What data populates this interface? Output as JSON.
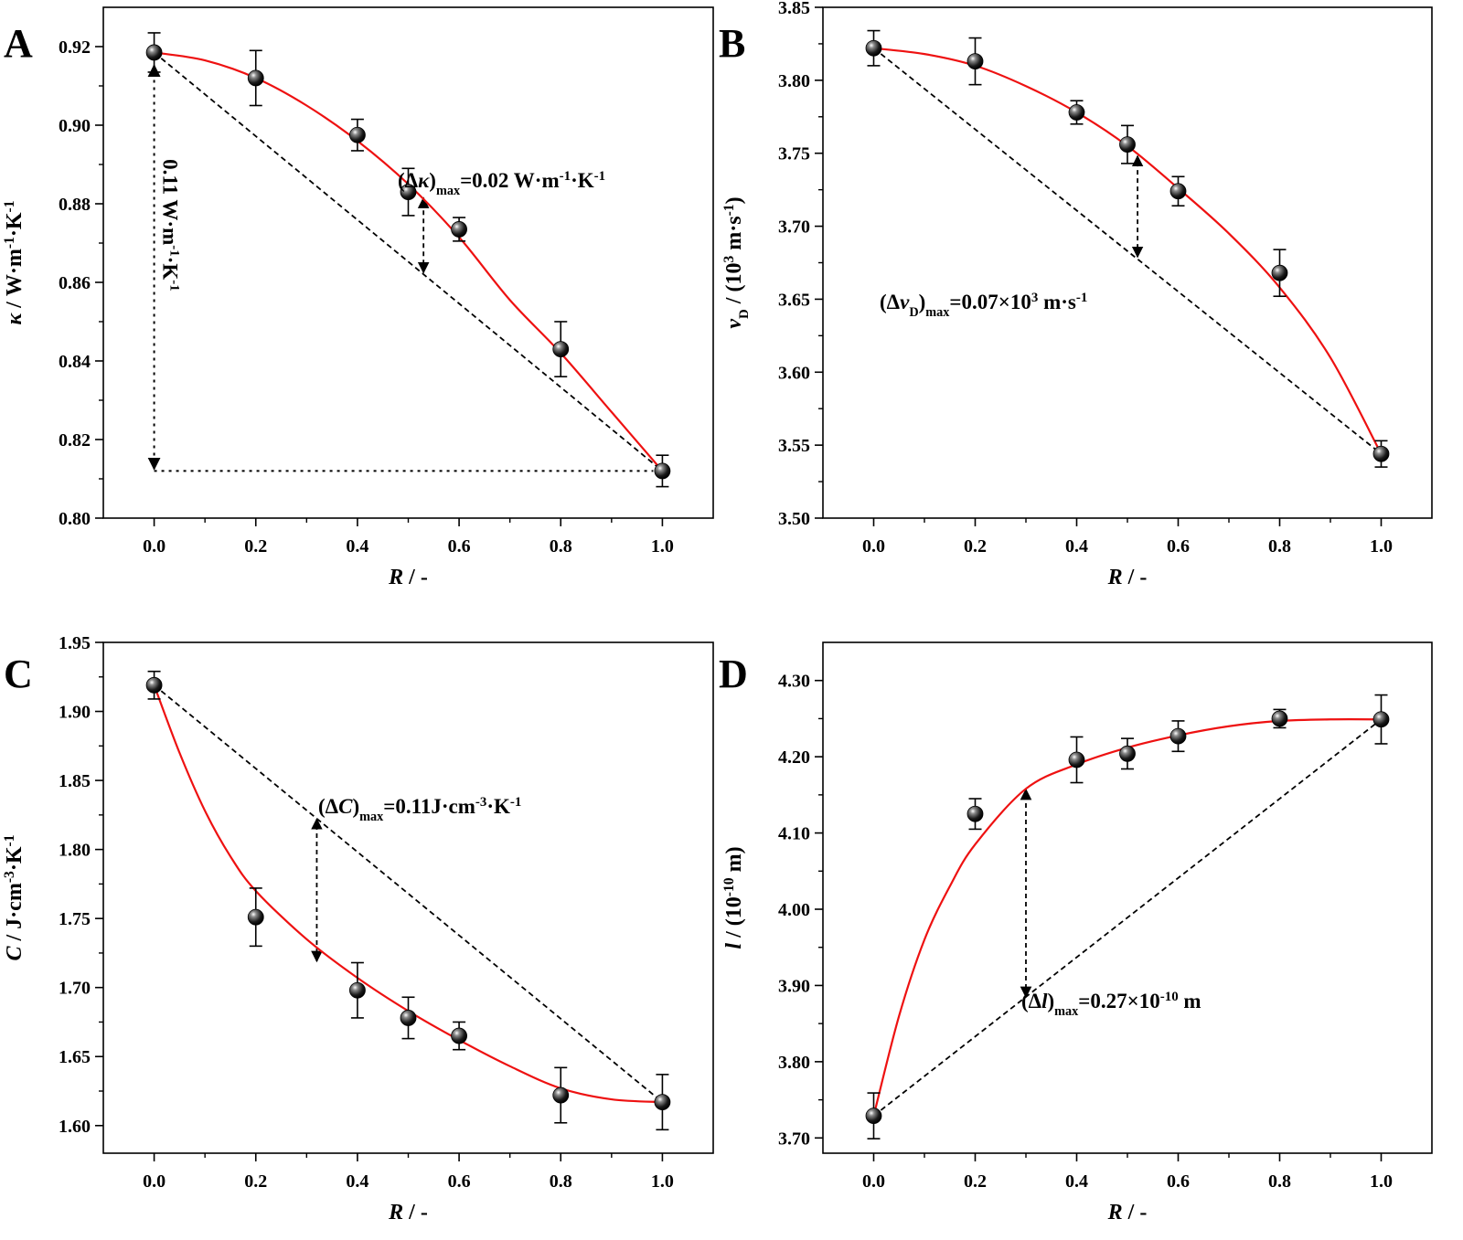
{
  "chart_data": [
    {
      "panel": "A",
      "type": "scatter",
      "x": [
        0.0,
        0.2,
        0.4,
        0.5,
        0.6,
        0.8,
        1.0
      ],
      "y": [
        0.9185,
        0.912,
        0.8975,
        0.883,
        0.8735,
        0.843,
        0.812
      ],
      "yerr": [
        0.005,
        0.007,
        0.004,
        0.006,
        0.003,
        0.007,
        0.004
      ],
      "fit": [
        [
          0.0,
          0.9185
        ],
        [
          0.1,
          0.9165
        ],
        [
          0.2,
          0.912
        ],
        [
          0.3,
          0.905
        ],
        [
          0.4,
          0.896
        ],
        [
          0.5,
          0.885
        ],
        [
          0.6,
          0.8715
        ],
        [
          0.7,
          0.8555
        ],
        [
          0.8,
          0.842
        ],
        [
          0.9,
          0.827
        ],
        [
          1.0,
          0.812
        ]
      ],
      "reference_line": [
        [
          0.0,
          0.9185
        ],
        [
          1.0,
          0.812
        ]
      ],
      "xlabel": {
        "main": "R",
        "suffix": " / -"
      },
      "ylabel": {
        "prefix": "κ",
        "main": " / W·m",
        "sup1": "-1",
        "mid": "·K",
        "sup2": "-1"
      },
      "xlim": [
        -0.1,
        1.1
      ],
      "ylim": [
        0.8,
        0.93
      ],
      "xticks": [
        "0.0",
        "0.2",
        "0.4",
        "0.6",
        "0.8",
        "1.0"
      ],
      "yticks": [
        "0.80",
        "0.82",
        "0.84",
        "0.86",
        "0.88",
        "0.90",
        "0.92"
      ],
      "annotation": {
        "open": "(Δ",
        "sym": "κ",
        "close": ")",
        "sub": "max",
        "value": "=0.02 W·m",
        "sup1": "-1",
        "mid": "·K",
        "sup2": "-1"
      },
      "delta_arrow": {
        "x": 0.53,
        "y_from": 0.8625,
        "y_to": 0.8815
      },
      "vertical_label": {
        "main": "0.11 W·m",
        "sup1": "-1",
        "mid": "·K",
        "sup2": "-1"
      },
      "grid": false,
      "legend": "none"
    },
    {
      "panel": "B",
      "type": "scatter",
      "x": [
        0.0,
        0.2,
        0.4,
        0.5,
        0.6,
        0.8,
        1.0
      ],
      "y": [
        3.822,
        3.813,
        3.778,
        3.756,
        3.724,
        3.668,
        3.544
      ],
      "yerr": [
        0.012,
        0.016,
        0.008,
        0.013,
        0.01,
        0.016,
        0.009
      ],
      "fit": [
        [
          0.0,
          3.822
        ],
        [
          0.1,
          3.818
        ],
        [
          0.2,
          3.81
        ],
        [
          0.3,
          3.796
        ],
        [
          0.4,
          3.778
        ],
        [
          0.5,
          3.755
        ],
        [
          0.6,
          3.726
        ],
        [
          0.7,
          3.695
        ],
        [
          0.8,
          3.658
        ],
        [
          0.9,
          3.61
        ],
        [
          1.0,
          3.544
        ]
      ],
      "reference_line": [
        [
          0.0,
          3.822
        ],
        [
          1.0,
          3.544
        ]
      ],
      "xlabel": {
        "main": "R",
        "suffix": " / -"
      },
      "ylabel": {
        "prefix": "v",
        "sub": "D",
        "main": " / (10",
        "sup1": "3",
        "mid": " m·s",
        "sup2": "-1",
        "end": ")"
      },
      "xlim": [
        -0.1,
        1.1
      ],
      "ylim": [
        3.5,
        3.85
      ],
      "xticks": [
        "0.0",
        "0.2",
        "0.4",
        "0.6",
        "0.8",
        "1.0"
      ],
      "yticks": [
        "3.50",
        "3.55",
        "3.60",
        "3.65",
        "3.70",
        "3.75",
        "3.80",
        "3.85"
      ],
      "annotation": {
        "open": "(Δ",
        "sym": "v",
        "symsub": "D",
        "close": ")",
        "sub": "max",
        "value": "=0.07×10",
        "sup1": "3",
        "mid": " m·s",
        "sup2": "-1"
      },
      "delta_arrow": {
        "x": 0.52,
        "y_from": 3.679,
        "y_to": 3.748
      },
      "grid": false,
      "legend": "none"
    },
    {
      "panel": "C",
      "type": "scatter",
      "x": [
        0.0,
        0.2,
        0.4,
        0.5,
        0.6,
        0.8,
        1.0
      ],
      "y": [
        1.919,
        1.751,
        1.698,
        1.678,
        1.665,
        1.622,
        1.617
      ],
      "yerr": [
        0.01,
        0.021,
        0.02,
        0.015,
        0.01,
        0.02,
        0.02
      ],
      "fit": [
        [
          0.0,
          1.919
        ],
        [
          0.05,
          1.87
        ],
        [
          0.1,
          1.828
        ],
        [
          0.15,
          1.795
        ],
        [
          0.2,
          1.77
        ],
        [
          0.3,
          1.735
        ],
        [
          0.4,
          1.707
        ],
        [
          0.5,
          1.683
        ],
        [
          0.6,
          1.662
        ],
        [
          0.7,
          1.643
        ],
        [
          0.8,
          1.627
        ],
        [
          0.9,
          1.619
        ],
        [
          1.0,
          1.617
        ]
      ],
      "reference_line": [
        [
          0.0,
          1.919
        ],
        [
          1.0,
          1.617
        ]
      ],
      "xlabel": {
        "main": "R",
        "suffix": " / -"
      },
      "ylabel": {
        "prefix": "C",
        "main": " / J·cm",
        "sup1": "-3",
        "mid": "·K",
        "sup2": "-1"
      },
      "xlim": [
        -0.1,
        1.1
      ],
      "ylim": [
        1.58,
        1.95
      ],
      "xticks": [
        "0.0",
        "0.2",
        "0.4",
        "0.6",
        "0.8",
        "1.0"
      ],
      "yticks": [
        "1.60",
        "1.65",
        "1.70",
        "1.75",
        "1.80",
        "1.85",
        "1.90",
        "1.95"
      ],
      "annotation": {
        "open": "(Δ",
        "sym": "C",
        "close": ")",
        "sub": "max",
        "value": "=0.11J·cm",
        "sup1": "-3",
        "mid": "·K",
        "sup2": "-1"
      },
      "delta_arrow": {
        "x": 0.32,
        "y_from": 1.719,
        "y_to": 1.822
      },
      "grid": false,
      "legend": "none"
    },
    {
      "panel": "D",
      "type": "scatter",
      "x": [
        0.0,
        0.2,
        0.4,
        0.5,
        0.6,
        0.8,
        1.0
      ],
      "y": [
        3.729,
        4.125,
        4.196,
        4.204,
        4.227,
        4.25,
        4.249
      ],
      "yerr": [
        0.03,
        0.02,
        0.03,
        0.02,
        0.02,
        0.012,
        0.032
      ],
      "fit": [
        [
          0.0,
          3.729
        ],
        [
          0.05,
          3.86
        ],
        [
          0.1,
          3.96
        ],
        [
          0.15,
          4.03
        ],
        [
          0.2,
          4.085
        ],
        [
          0.3,
          4.158
        ],
        [
          0.4,
          4.19
        ],
        [
          0.5,
          4.212
        ],
        [
          0.6,
          4.228
        ],
        [
          0.7,
          4.24
        ],
        [
          0.8,
          4.247
        ],
        [
          0.9,
          4.249
        ],
        [
          1.0,
          4.249
        ]
      ],
      "reference_line": [
        [
          0.0,
          3.729
        ],
        [
          1.0,
          4.249
        ]
      ],
      "xlabel": {
        "main": "R",
        "suffix": " / -"
      },
      "ylabel": {
        "prefix": "l",
        "main": " / (10",
        "sup1": "-10",
        "mid": " m)"
      },
      "xlim": [
        -0.1,
        1.1
      ],
      "ylim": [
        3.68,
        4.35
      ],
      "xticks": [
        "0.0",
        "0.2",
        "0.4",
        "0.6",
        "0.8",
        "1.0"
      ],
      "yticks": [
        "3.70",
        "3.80",
        "3.90",
        "4.00",
        "4.10",
        "4.20",
        "4.30"
      ],
      "annotation": {
        "open": "(Δ",
        "sym": "l",
        "close": ")",
        "sub": "max",
        "value": "=0.27×10",
        "sup1": "-10",
        "mid": " m"
      },
      "delta_arrow": {
        "x": 0.3,
        "y_from": 3.885,
        "y_to": 4.157
      },
      "grid": false,
      "legend": "none"
    }
  ],
  "colors": {
    "fit_line": "#ee1111",
    "marker": "#111111",
    "axis": "#000000"
  }
}
